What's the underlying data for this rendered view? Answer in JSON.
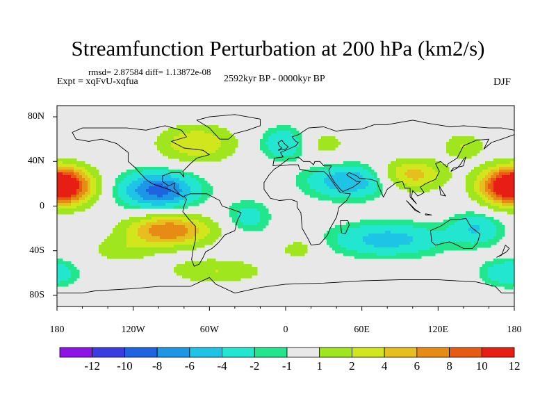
{
  "title": "Streamfunction Perturbation at 200 hPa (km2/s)",
  "stats": "rmsd= 2.87584 diff= 1.13872e-08",
  "experiment": "Expt = xqFvU-xqfua",
  "period": "2592kyr BP - 0000kyr BP",
  "season": "DJF",
  "x_ticks": [
    "180",
    "120W",
    "60W",
    "0",
    "60E",
    "120E",
    "180"
  ],
  "y_ticks": [
    "80N",
    "40N",
    "0",
    "40S",
    "80S"
  ],
  "colorbar": {
    "labels": [
      "-12",
      "-10",
      "-8",
      "-6",
      "-4",
      "-2",
      "-1",
      "1",
      "2",
      "4",
      "6",
      "8",
      "10",
      "12"
    ],
    "colors": [
      "#8c14e6",
      "#3a3ce0",
      "#1e64e0",
      "#1e96e6",
      "#1ec4e6",
      "#22e6cf",
      "#22e68c",
      "#e8e8e8",
      "#a0e61e",
      "#d2e61e",
      "#e6be1e",
      "#e68c14",
      "#e65a14",
      "#e61e14"
    ]
  },
  "chart_data": {
    "type": "heatmap",
    "title": "Streamfunction Perturbation at 200 hPa (km2/s)",
    "projection": "cylindrical equidistant",
    "lon_range": [
      -180,
      180
    ],
    "lat_range": [
      -90,
      90
    ],
    "levels": [
      -12,
      -10,
      -8,
      -6,
      -4,
      -2,
      -1,
      1,
      2,
      4,
      6,
      8,
      10,
      12
    ],
    "rmsd": 2.87584,
    "diff": 1.13872e-08,
    "anomaly_centers": [
      {
        "lon": -172,
        "lat": 18,
        "value": 11,
        "sx": 16,
        "sy": 12
      },
      {
        "lon": 172,
        "lat": 18,
        "value": 10,
        "sx": 16,
        "sy": 12
      },
      {
        "lon": -100,
        "lat": 14,
        "value": -9,
        "sx": 20,
        "sy": 11
      },
      {
        "lon": -92,
        "lat": -22,
        "value": 10,
        "sx": 24,
        "sy": 10
      },
      {
        "lon": 50,
        "lat": 22,
        "value": -6,
        "sx": 22,
        "sy": 10
      },
      {
        "lon": 100,
        "lat": 28,
        "value": 7,
        "sx": 18,
        "sy": 10
      },
      {
        "lon": -70,
        "lat": 56,
        "value": 6,
        "sx": 22,
        "sy": 12
      },
      {
        "lon": 0,
        "lat": 56,
        "value": -4,
        "sx": 14,
        "sy": 10
      },
      {
        "lon": 140,
        "lat": 54,
        "value": 4,
        "sx": 12,
        "sy": 8
      },
      {
        "lon": 30,
        "lat": 56,
        "value": 3,
        "sx": 14,
        "sy": 10
      },
      {
        "lon": 80,
        "lat": -30,
        "value": -5,
        "sx": 30,
        "sy": 10
      },
      {
        "lon": -55,
        "lat": -58,
        "value": 4,
        "sx": 28,
        "sy": 8
      },
      {
        "lon": 10,
        "lat": -38,
        "value": 3,
        "sx": 12,
        "sy": 7
      },
      {
        "lon": 150,
        "lat": -20,
        "value": -4,
        "sx": 14,
        "sy": 10
      },
      {
        "lon": -130,
        "lat": -40,
        "value": 3,
        "sx": 18,
        "sy": 8
      },
      {
        "lon": 175,
        "lat": -60,
        "value": -4,
        "sx": 14,
        "sy": 8
      },
      {
        "lon": -30,
        "lat": -10,
        "value": -3,
        "sx": 12,
        "sy": 10
      }
    ]
  }
}
